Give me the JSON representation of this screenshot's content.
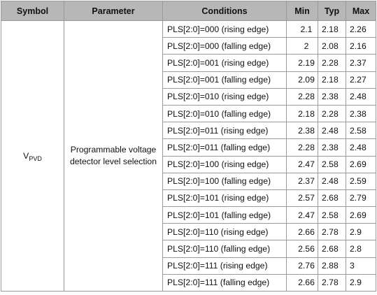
{
  "headers": {
    "symbol": "Symbol",
    "parameter": "Parameter",
    "conditions": "Conditions",
    "min": "Min",
    "typ": "Typ",
    "max": "Max"
  },
  "symbol": {
    "main": "V",
    "sub": "PVD"
  },
  "parameter": "Programmable voltage detector level selection",
  "rows": [
    {
      "condition": "PLS[2:0]=000 (rising edge)",
      "min": "2.1",
      "typ": "2.18",
      "max": "2.26"
    },
    {
      "condition": "PLS[2:0]=000 (falling edge)",
      "min": "2",
      "typ": "2.08",
      "max": "2.16"
    },
    {
      "condition": "PLS[2:0]=001 (rising edge)",
      "min": "2.19",
      "typ": "2.28",
      "max": "2.37"
    },
    {
      "condition": "PLS[2:0]=001 (falling edge)",
      "min": "2.09",
      "typ": "2.18",
      "max": "2.27"
    },
    {
      "condition": "PLS[2:0]=010 (rising edge)",
      "min": "2.28",
      "typ": "2.38",
      "max": "2.48"
    },
    {
      "condition": "PLS[2:0]=010 (falling edge)",
      "min": "2.18",
      "typ": "2.28",
      "max": "2.38"
    },
    {
      "condition": "PLS[2:0]=011 (rising edge)",
      "min": "2.38",
      "typ": "2.48",
      "max": "2.58"
    },
    {
      "condition": "PLS[2:0]=011 (falling edge)",
      "min": "2.28",
      "typ": "2.38",
      "max": "2.48"
    },
    {
      "condition": "PLS[2:0]=100 (rising edge)",
      "min": "2.47",
      "typ": "2.58",
      "max": "2.69"
    },
    {
      "condition": "PLS[2:0]=100 (falling edge)",
      "min": "2.37",
      "typ": "2.48",
      "max": "2.59"
    },
    {
      "condition": "PLS[2:0]=101 (rising edge)",
      "min": "2.57",
      "typ": "2.68",
      "max": "2.79"
    },
    {
      "condition": "PLS[2:0]=101 (falling edge)",
      "min": "2.47",
      "typ": "2.58",
      "max": "2.69"
    },
    {
      "condition": "PLS[2:0]=110 (rising edge)",
      "min": "2.66",
      "typ": "2.78",
      "max": "2.9"
    },
    {
      "condition": "PLS[2:0]=110 (falling edge)",
      "min": "2.56",
      "typ": "2.68",
      "max": "2.8"
    },
    {
      "condition": "PLS[2:0]=111 (rising edge)",
      "min": "2.76",
      "typ": "2.88",
      "max": "3"
    },
    {
      "condition": "PLS[2:0]=111 (falling edge)",
      "min": "2.66",
      "typ": "2.78",
      "max": "2.9"
    }
  ]
}
